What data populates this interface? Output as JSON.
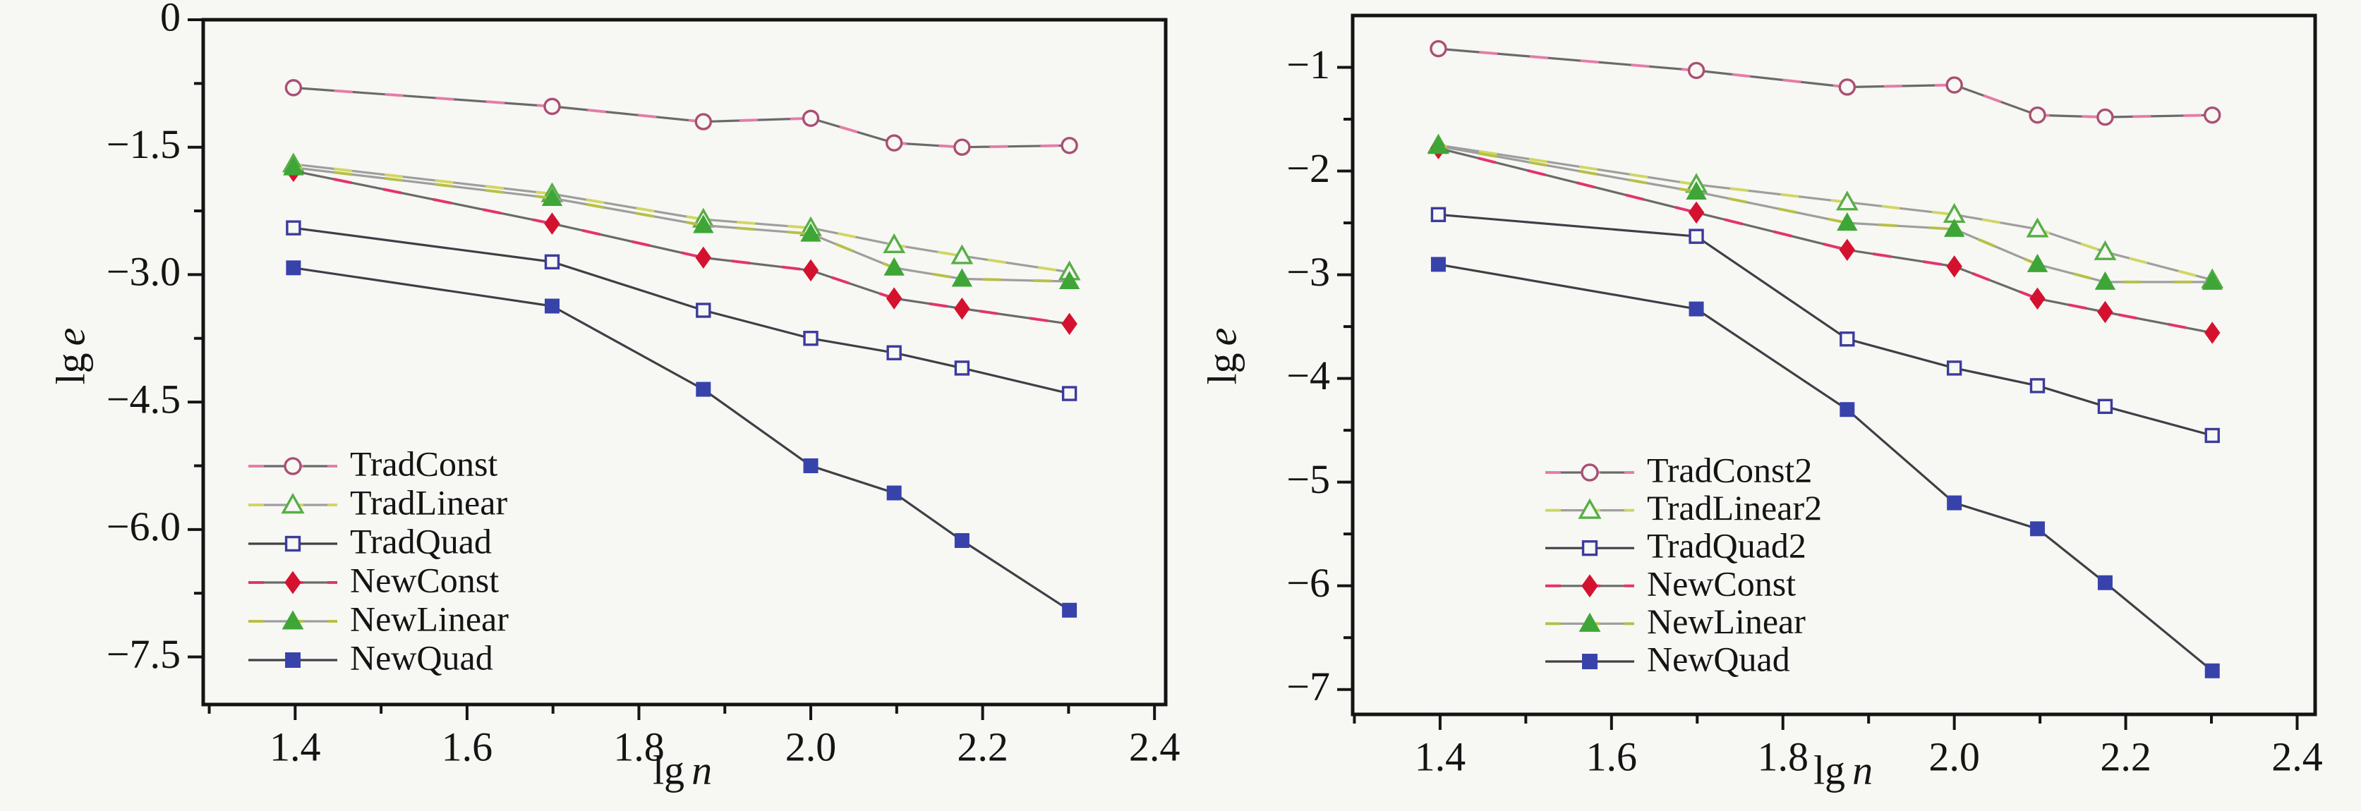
{
  "figure": {
    "background": "#f7f7f4",
    "frame_color": "#141414",
    "text_color": "#141414",
    "description": "Two line charts of error (lg e) versus problem size (lg n) comparing traditional and new methods"
  },
  "chart_data": [
    {
      "type": "line",
      "title": "",
      "xlabel": {
        "text": "lg",
        "var": "n"
      },
      "ylabel": {
        "text": "lg",
        "var": "e"
      },
      "xlim": [
        1.293,
        2.413
      ],
      "ylim": [
        -8.06,
        0
      ],
      "grid": false,
      "legend_position": "lower-left",
      "xticks": {
        "major": [
          1.4,
          1.6,
          1.8,
          2.0,
          2.2,
          2.4
        ],
        "labels": [
          "1.4",
          "1.6",
          "1.8",
          "2.0",
          "2.2",
          "2.4"
        ],
        "minor": [
          1.3,
          1.5,
          1.7,
          1.9,
          2.1,
          2.3
        ]
      },
      "yticks": {
        "major": [
          0,
          -1.5,
          -3.0,
          -4.5,
          -6.0,
          -7.5
        ],
        "labels": [
          "0",
          "−1.5",
          "−3.0",
          "−4.5",
          "−6.0",
          "−7.5"
        ],
        "minor": [
          -0.75,
          -2.25,
          -3.75,
          -5.25,
          -6.75
        ]
      },
      "x": [
        1.398,
        1.699,
        1.875,
        2.0,
        2.097,
        2.176,
        2.301
      ],
      "series": [
        {
          "name": "TradConst",
          "marker": "open-circle",
          "marker_color": "#aa4f73",
          "line_color": "#6a6a6a",
          "accent_color": "#ef7fae",
          "values": [
            -0.8,
            -1.02,
            -1.2,
            -1.16,
            -1.45,
            -1.5,
            -1.48
          ]
        },
        {
          "name": "TradLinear",
          "marker": "open-triangle",
          "marker_color": "#57ae46",
          "line_color": "#9e9e9e",
          "accent_color": "#d6da5e",
          "values": [
            -1.7,
            -2.05,
            -2.35,
            -2.45,
            -2.65,
            -2.78,
            -2.97
          ]
        },
        {
          "name": "TradQuad",
          "marker": "open-square",
          "marker_color": "#3b3b9c",
          "line_color": "#3f3f46",
          "accent_color": null,
          "values": [
            -2.45,
            -2.85,
            -3.42,
            -3.75,
            -3.92,
            -4.1,
            -4.4
          ]
        },
        {
          "name": "NewConst",
          "marker": "filled-diamond",
          "marker_color": "#d4122f",
          "line_color": "#6a6a6a",
          "accent_color": "#ee2d6e",
          "values": [
            -1.78,
            -2.4,
            -2.8,
            -2.95,
            -3.28,
            -3.4,
            -3.58
          ]
        },
        {
          "name": "NewLinear",
          "marker": "filled-triangle",
          "marker_color": "#3ea637",
          "line_color": "#9e9e9e",
          "accent_color": "#b9c23e",
          "values": [
            -1.74,
            -2.1,
            -2.42,
            -2.52,
            -2.92,
            -3.05,
            -3.08
          ]
        },
        {
          "name": "NewQuad",
          "marker": "filled-square",
          "marker_color": "#3842ab",
          "line_color": "#3f3f46",
          "accent_color": null,
          "values": [
            -2.92,
            -3.37,
            -4.35,
            -5.25,
            -5.57,
            -6.13,
            -6.95
          ]
        }
      ]
    },
    {
      "type": "line",
      "title": "",
      "xlabel": {
        "text": "lg",
        "var": "n"
      },
      "ylabel": {
        "text": "lg",
        "var": "e"
      },
      "xlim": [
        1.298,
        2.421
      ],
      "ylim": [
        -7.24,
        -0.5
      ],
      "grid": false,
      "legend_position": "lower-left",
      "xticks": {
        "major": [
          1.4,
          1.6,
          1.8,
          2.0,
          2.2,
          2.4
        ],
        "labels": [
          "1.4",
          "1.6",
          "1.8",
          "2.0",
          "2.2",
          "2.4"
        ],
        "minor": [
          1.3,
          1.5,
          1.7,
          1.9,
          2.1,
          2.3
        ]
      },
      "yticks": {
        "major": [
          -1,
          -2,
          -3,
          -4,
          -5,
          -6,
          -7
        ],
        "labels": [
          "−1",
          "−2",
          "−3",
          "−4",
          "−5",
          "−6",
          "−7"
        ],
        "minor": [
          -1.5,
          -2.5,
          -3.5,
          -4.5,
          -5.5,
          -6.5
        ]
      },
      "x": [
        1.398,
        1.699,
        1.875,
        2.0,
        2.097,
        2.176,
        2.301
      ],
      "series": [
        {
          "name": "TradConst2",
          "marker": "open-circle",
          "marker_color": "#aa4f73",
          "line_color": "#6a6a6a",
          "accent_color": "#ef7fae",
          "values": [
            -0.82,
            -1.03,
            -1.19,
            -1.17,
            -1.46,
            -1.48,
            -1.46
          ]
        },
        {
          "name": "TradLinear2",
          "marker": "open-triangle",
          "marker_color": "#57ae46",
          "line_color": "#9e9e9e",
          "accent_color": "#d6da5e",
          "values": [
            -1.75,
            -2.13,
            -2.3,
            -2.42,
            -2.56,
            -2.78,
            -3.05
          ]
        },
        {
          "name": "TradQuad2",
          "marker": "open-square",
          "marker_color": "#3b3b9c",
          "line_color": "#3f3f46",
          "accent_color": null,
          "values": [
            -2.42,
            -2.63,
            -3.62,
            -3.9,
            -4.07,
            -4.27,
            -4.55
          ]
        },
        {
          "name": "NewConst",
          "marker": "filled-diamond",
          "marker_color": "#d4122f",
          "line_color": "#6a6a6a",
          "accent_color": "#ee2d6e",
          "values": [
            -1.78,
            -2.4,
            -2.76,
            -2.92,
            -3.23,
            -3.36,
            -3.56
          ]
        },
        {
          "name": "NewLinear",
          "marker": "filled-triangle",
          "marker_color": "#3ea637",
          "line_color": "#9e9e9e",
          "accent_color": "#b9c23e",
          "values": [
            -1.76,
            -2.2,
            -2.5,
            -2.56,
            -2.9,
            -3.07,
            -3.07
          ]
        },
        {
          "name": "NewQuad",
          "marker": "filled-square",
          "marker_color": "#3842ab",
          "line_color": "#3f3f46",
          "accent_color": null,
          "values": [
            -2.9,
            -3.33,
            -4.3,
            -5.2,
            -5.45,
            -5.97,
            -6.82
          ]
        }
      ]
    }
  ]
}
